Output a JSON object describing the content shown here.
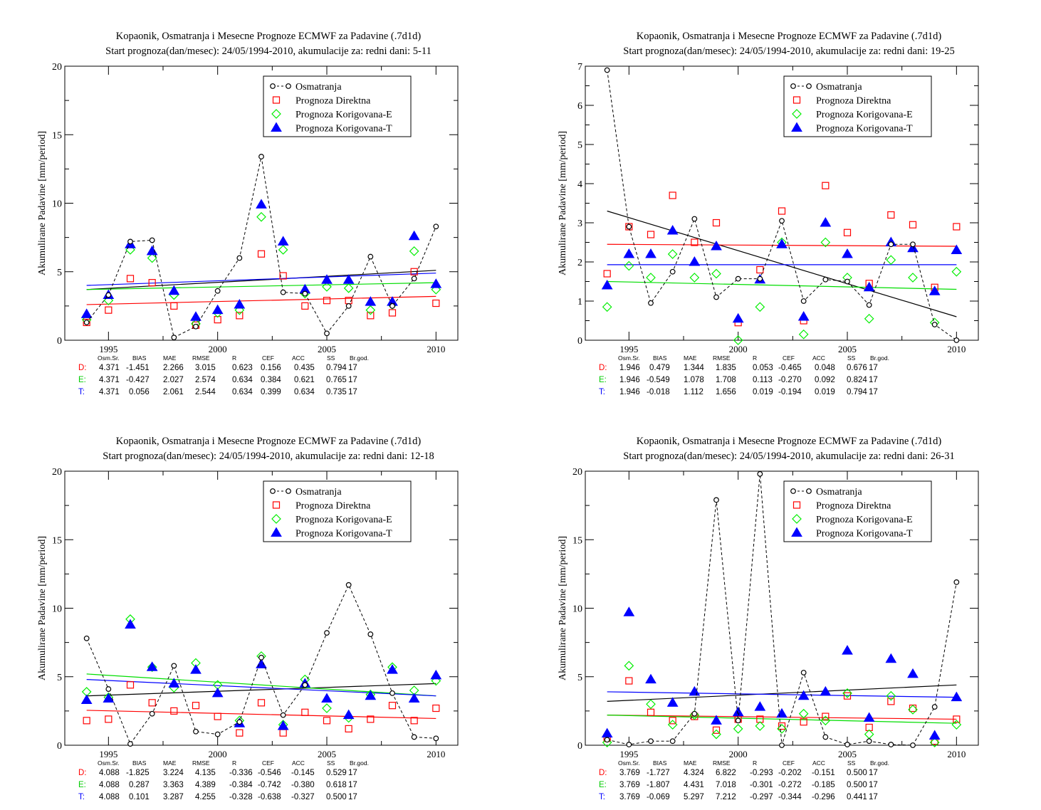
{
  "chart_data": [
    {
      "type": "scatter",
      "title": "Kopaonik, Osmatranja i Mesecne Prognoze ECMWF za Padavine (.7d1d)",
      "subtitle": "Start prognoza(dan/mesec): 24/05/1994-2010, akumulacije za: redni dani: 5-11",
      "xlabel": "",
      "ylabel": "Akumulirane Padavine [mm/period]",
      "xlim": [
        1993,
        2011
      ],
      "ylim": [
        0,
        20
      ],
      "yticks": [
        0,
        5,
        10,
        15,
        20
      ],
      "xticks": [
        1995,
        2000,
        2005,
        2010
      ],
      "legend_position": "top-right",
      "x": [
        1994,
        1995,
        1996,
        1997,
        1998,
        1999,
        2000,
        2001,
        2002,
        2003,
        2004,
        2005,
        2006,
        2007,
        2008,
        2009,
        2010
      ],
      "series": [
        {
          "name": "Osmatranja",
          "color": "#000000",
          "marker": "circle",
          "line": "dashed",
          "values": [
            1.3,
            3.3,
            7.2,
            7.3,
            0.2,
            1.0,
            3.6,
            6.0,
            13.4,
            3.5,
            3.4,
            0.5,
            2.5,
            6.1,
            2.5,
            4.5,
            8.3
          ],
          "trend": [
            3.7,
            5.1
          ]
        },
        {
          "name": "Prognoza Direktna",
          "color": "#ff0000",
          "marker": "square",
          "line": "none",
          "values": [
            1.3,
            2.2,
            4.5,
            4.2,
            2.5,
            1.1,
            1.5,
            1.8,
            6.3,
            4.7,
            2.5,
            2.9,
            2.9,
            1.8,
            2.0,
            5.0,
            2.7
          ],
          "trend": [
            2.6,
            3.2
          ]
        },
        {
          "name": "Prognoza Korigovana-E",
          "color": "#00ee00",
          "marker": "diamond",
          "line": "none",
          "values": [
            1.5,
            2.9,
            6.6,
            6.0,
            3.3,
            1.2,
            2.0,
            2.2,
            9.0,
            6.6,
            3.4,
            3.9,
            3.8,
            2.2,
            2.6,
            6.5,
            3.7
          ],
          "trend": [
            3.7,
            4.2
          ]
        },
        {
          "name": "Prognoza Korigovana-T",
          "color": "#0000ff",
          "marker": "triangle",
          "line": "none",
          "values": [
            1.9,
            3.3,
            7.0,
            6.5,
            3.6,
            1.7,
            2.2,
            2.6,
            9.9,
            7.2,
            3.7,
            4.4,
            4.4,
            2.8,
            2.8,
            7.6,
            4.1
          ],
          "trend": [
            4.0,
            4.9
          ]
        }
      ],
      "stats": {
        "headers": [
          "Osm.Sr.",
          "BIAS",
          "MAE",
          "RMSE",
          "R",
          "CEF",
          "ACC",
          "SS",
          "Br.god."
        ],
        "rows": [
          {
            "label": "D:",
            "values": [
              "4.371",
              "-1.451",
              "2.266",
              "3.015",
              "0.623",
              "0.156",
              "0.435",
              "0.794",
              "17"
            ]
          },
          {
            "label": "E:",
            "values": [
              "4.371",
              "-0.427",
              "2.027",
              "2.574",
              "0.634",
              "0.384",
              "0.621",
              "0.765",
              "17"
            ]
          },
          {
            "label": "T:",
            "values": [
              "4.371",
              "0.056",
              "2.061",
              "2.544",
              "0.634",
              "0.399",
              "0.634",
              "0.735",
              "17"
            ]
          }
        ]
      }
    },
    {
      "type": "scatter",
      "title": "Kopaonik, Osmatranja i Mesecne Prognoze ECMWF za Padavine (.7d1d)",
      "subtitle": "Start prognoza(dan/mesec): 24/05/1994-2010, akumulacije za: redni dani: 19-25",
      "xlabel": "",
      "ylabel": "Akumulirane Padavine [mm/period]",
      "xlim": [
        1993,
        2011
      ],
      "ylim": [
        0,
        7
      ],
      "yticks": [
        0,
        1,
        2,
        3,
        4,
        5,
        6,
        7
      ],
      "xticks": [
        1995,
        2000,
        2005,
        2010
      ],
      "legend_position": "top-right",
      "x": [
        1994,
        1995,
        1996,
        1997,
        1998,
        1999,
        2000,
        2001,
        2002,
        2003,
        2004,
        2005,
        2006,
        2007,
        2008,
        2009,
        2010
      ],
      "series": [
        {
          "name": "Osmatranja",
          "color": "#000000",
          "marker": "circle",
          "line": "dashed",
          "values": [
            6.9,
            2.9,
            0.95,
            1.75,
            3.1,
            1.1,
            1.57,
            1.57,
            3.05,
            1.0,
            1.55,
            1.5,
            0.9,
            2.45,
            2.45,
            0.4,
            0.0
          ],
          "trend": [
            3.3,
            0.6
          ]
        },
        {
          "name": "Prognoza Direktna",
          "color": "#ff0000",
          "marker": "square",
          "line": "none",
          "values": [
            1.7,
            2.9,
            2.7,
            3.7,
            2.5,
            3.0,
            0.45,
            1.8,
            3.3,
            0.5,
            3.95,
            2.75,
            1.45,
            3.2,
            2.95,
            1.35,
            2.9
          ],
          "trend": [
            2.45,
            2.4
          ]
        },
        {
          "name": "Prognoza Korigovana-E",
          "color": "#00ee00",
          "marker": "diamond",
          "line": "none",
          "values": [
            0.85,
            1.9,
            1.6,
            2.2,
            1.6,
            1.7,
            0.0,
            0.85,
            2.5,
            0.15,
            2.5,
            1.6,
            0.55,
            2.05,
            1.6,
            0.45,
            1.75
          ],
          "trend": [
            1.5,
            1.3
          ]
        },
        {
          "name": "Prognoza Korigovana-T",
          "color": "#0000ff",
          "marker": "triangle",
          "line": "none",
          "values": [
            1.4,
            2.2,
            2.2,
            2.8,
            2.0,
            2.4,
            0.55,
            1.55,
            2.45,
            0.6,
            3.0,
            2.2,
            1.35,
            2.5,
            2.35,
            1.25,
            2.3
          ],
          "trend": [
            1.93,
            1.93
          ]
        }
      ],
      "stats": {
        "headers": [
          "Osm.Sr.",
          "BIAS",
          "MAE",
          "RMSE",
          "R",
          "CEF",
          "ACC",
          "SS",
          "Br.god."
        ],
        "rows": [
          {
            "label": "D:",
            "values": [
              "1.946",
              "0.479",
              "1.344",
              "1.835",
              "0.053",
              "-0.465",
              "0.048",
              "0.676",
              "17"
            ]
          },
          {
            "label": "E:",
            "values": [
              "1.946",
              "-0.549",
              "1.078",
              "1.708",
              "0.113",
              "-0.270",
              "0.092",
              "0.824",
              "17"
            ]
          },
          {
            "label": "T:",
            "values": [
              "1.946",
              "-0.018",
              "1.112",
              "1.656",
              "0.019",
              "-0.194",
              "0.019",
              "0.794",
              "17"
            ]
          }
        ]
      }
    },
    {
      "type": "scatter",
      "title": "Kopaonik, Osmatranja i Mesecne Prognoze ECMWF za Padavine (.7d1d)",
      "subtitle": "Start prognoza(dan/mesec): 24/05/1994-2010, akumulacije za: redni dani: 12-18",
      "xlabel": "",
      "ylabel": "Akumulirane Padavine [mm/period]",
      "xlim": [
        1993,
        2011
      ],
      "ylim": [
        0,
        20
      ],
      "yticks": [
        0,
        5,
        10,
        15,
        20
      ],
      "xticks": [
        1995,
        2000,
        2005,
        2010
      ],
      "legend_position": "top-right",
      "x": [
        1994,
        1995,
        1996,
        1997,
        1998,
        1999,
        2000,
        2001,
        2002,
        2003,
        2004,
        2005,
        2006,
        2007,
        2008,
        2009,
        2010
      ],
      "series": [
        {
          "name": "Osmatranja",
          "color": "#000000",
          "marker": "circle",
          "line": "dashed",
          "values": [
            7.8,
            4.1,
            0.1,
            2.3,
            5.8,
            1.0,
            0.8,
            1.7,
            6.4,
            2.2,
            4.4,
            8.2,
            11.7,
            8.1,
            3.8,
            0.6,
            0.5
          ],
          "trend": [
            3.6,
            4.5
          ]
        },
        {
          "name": "Prognoza Direktna",
          "color": "#ff0000",
          "marker": "square",
          "line": "none",
          "values": [
            1.8,
            1.9,
            4.4,
            3.1,
            2.5,
            2.9,
            2.1,
            0.9,
            3.1,
            0.9,
            2.4,
            1.8,
            1.2,
            1.9,
            2.9,
            1.8,
            2.7
          ],
          "trend": [
            2.55,
            1.95
          ]
        },
        {
          "name": "Prognoza Korigovana-E",
          "color": "#00ee00",
          "marker": "diamond",
          "line": "none",
          "values": [
            3.9,
            3.5,
            9.2,
            5.7,
            4.2,
            6.0,
            4.4,
            1.8,
            6.5,
            1.5,
            4.8,
            2.7,
            2.0,
            3.7,
            5.7,
            4.0,
            4.7
          ],
          "trend": [
            5.2,
            3.6
          ]
        },
        {
          "name": "Prognoza Korigovana-T",
          "color": "#0000ff",
          "marker": "triangle",
          "line": "none",
          "values": [
            3.3,
            3.4,
            8.8,
            5.7,
            4.5,
            5.5,
            3.8,
            1.6,
            5.9,
            1.4,
            4.5,
            3.4,
            2.2,
            3.6,
            5.5,
            3.4,
            5.1
          ],
          "trend": [
            4.8,
            3.6
          ]
        }
      ],
      "stats": {
        "headers": [
          "Osm.Sr.",
          "BIAS",
          "MAE",
          "RMSE",
          "R",
          "CEF",
          "ACC",
          "SS",
          "Br.god."
        ],
        "rows": [
          {
            "label": "D:",
            "values": [
              "4.088",
              "-1.825",
              "3.224",
              "4.135",
              "-0.336",
              "-0.546",
              "-0.145",
              "0.529",
              "17"
            ]
          },
          {
            "label": "E:",
            "values": [
              "4.088",
              "0.287",
              "3.363",
              "4.389",
              "-0.384",
              "-0.742",
              "-0.380",
              "0.618",
              "17"
            ]
          },
          {
            "label": "T:",
            "values": [
              "4.088",
              "0.101",
              "3.287",
              "4.255",
              "-0.328",
              "-0.638",
              "-0.327",
              "0.500",
              "17"
            ]
          }
        ]
      }
    },
    {
      "type": "scatter",
      "title": "Kopaonik, Osmatranja i Mesecne Prognoze ECMWF za Padavine (.7d1d)",
      "subtitle": "Start prognoza(dan/mesec): 24/05/1994-2010, akumulacije za: redni dani: 26-31",
      "xlabel": "",
      "ylabel": "Akumulirane Padavine [mm/period]",
      "xlim": [
        1993,
        2011
      ],
      "ylim": [
        0,
        20
      ],
      "yticks": [
        0,
        5,
        10,
        15,
        20
      ],
      "xticks": [
        1995,
        2000,
        2005,
        2010
      ],
      "legend_position": "top-right",
      "x": [
        1994,
        1995,
        1996,
        1997,
        1998,
        1999,
        2000,
        2001,
        2002,
        2003,
        2004,
        2005,
        2006,
        2007,
        2008,
        2009,
        2010
      ],
      "series": [
        {
          "name": "Osmatranja",
          "color": "#000000",
          "marker": "circle",
          "line": "dashed",
          "values": [
            0.4,
            0.05,
            0.3,
            0.3,
            2.3,
            17.9,
            1.8,
            19.8,
            0.0,
            5.3,
            0.6,
            0.05,
            0.3,
            0.05,
            0.0,
            2.8,
            11.9
          ],
          "trend": [
            3.2,
            4.4
          ]
        },
        {
          "name": "Prognoza Direktna",
          "color": "#ff0000",
          "marker": "square",
          "line": "none",
          "values": [
            0.5,
            4.7,
            2.4,
            1.8,
            2.1,
            1.1,
            1.9,
            1.9,
            1.4,
            1.7,
            2.1,
            3.6,
            1.3,
            3.2,
            2.7,
            0.3,
            1.9
          ],
          "trend": [
            2.2,
            1.9
          ]
        },
        {
          "name": "Prognoza Korigovana-E",
          "color": "#00ee00",
          "marker": "diamond",
          "line": "none",
          "values": [
            0.2,
            5.8,
            3.0,
            1.5,
            2.2,
            0.8,
            1.2,
            1.4,
            1.2,
            2.3,
            1.8,
            3.8,
            0.8,
            3.6,
            2.6,
            0.2,
            1.5
          ],
          "trend": [
            2.2,
            1.6
          ]
        },
        {
          "name": "Prognoza Korigovana-T",
          "color": "#0000ff",
          "marker": "triangle",
          "line": "none",
          "values": [
            0.85,
            9.7,
            4.8,
            3.1,
            3.9,
            1.8,
            2.4,
            2.8,
            2.3,
            3.6,
            3.9,
            6.9,
            2.0,
            6.3,
            5.2,
            0.7,
            3.5
          ],
          "trend": [
            3.9,
            3.5
          ]
        }
      ],
      "stats": {
        "headers": [
          "Osm.Sr.",
          "BIAS",
          "MAE",
          "RMSE",
          "R",
          "CEF",
          "ACC",
          "SS",
          "Br.god."
        ],
        "rows": [
          {
            "label": "D:",
            "values": [
              "3.769",
              "-1.727",
              "4.324",
              "6.822",
              "-0.293",
              "-0.202",
              "-0.151",
              "0.500",
              "17"
            ]
          },
          {
            "label": "E:",
            "values": [
              "3.769",
              "-1.807",
              "4.431",
              "7.018",
              "-0.301",
              "-0.272",
              "-0.185",
              "0.500",
              "17"
            ]
          },
          {
            "label": "T:",
            "values": [
              "3.769",
              "-0.069",
              "5.297",
              "7.212",
              "-0.297",
              "-0.344",
              "-0.296",
              "0.441",
              "17"
            ]
          }
        ]
      }
    }
  ]
}
